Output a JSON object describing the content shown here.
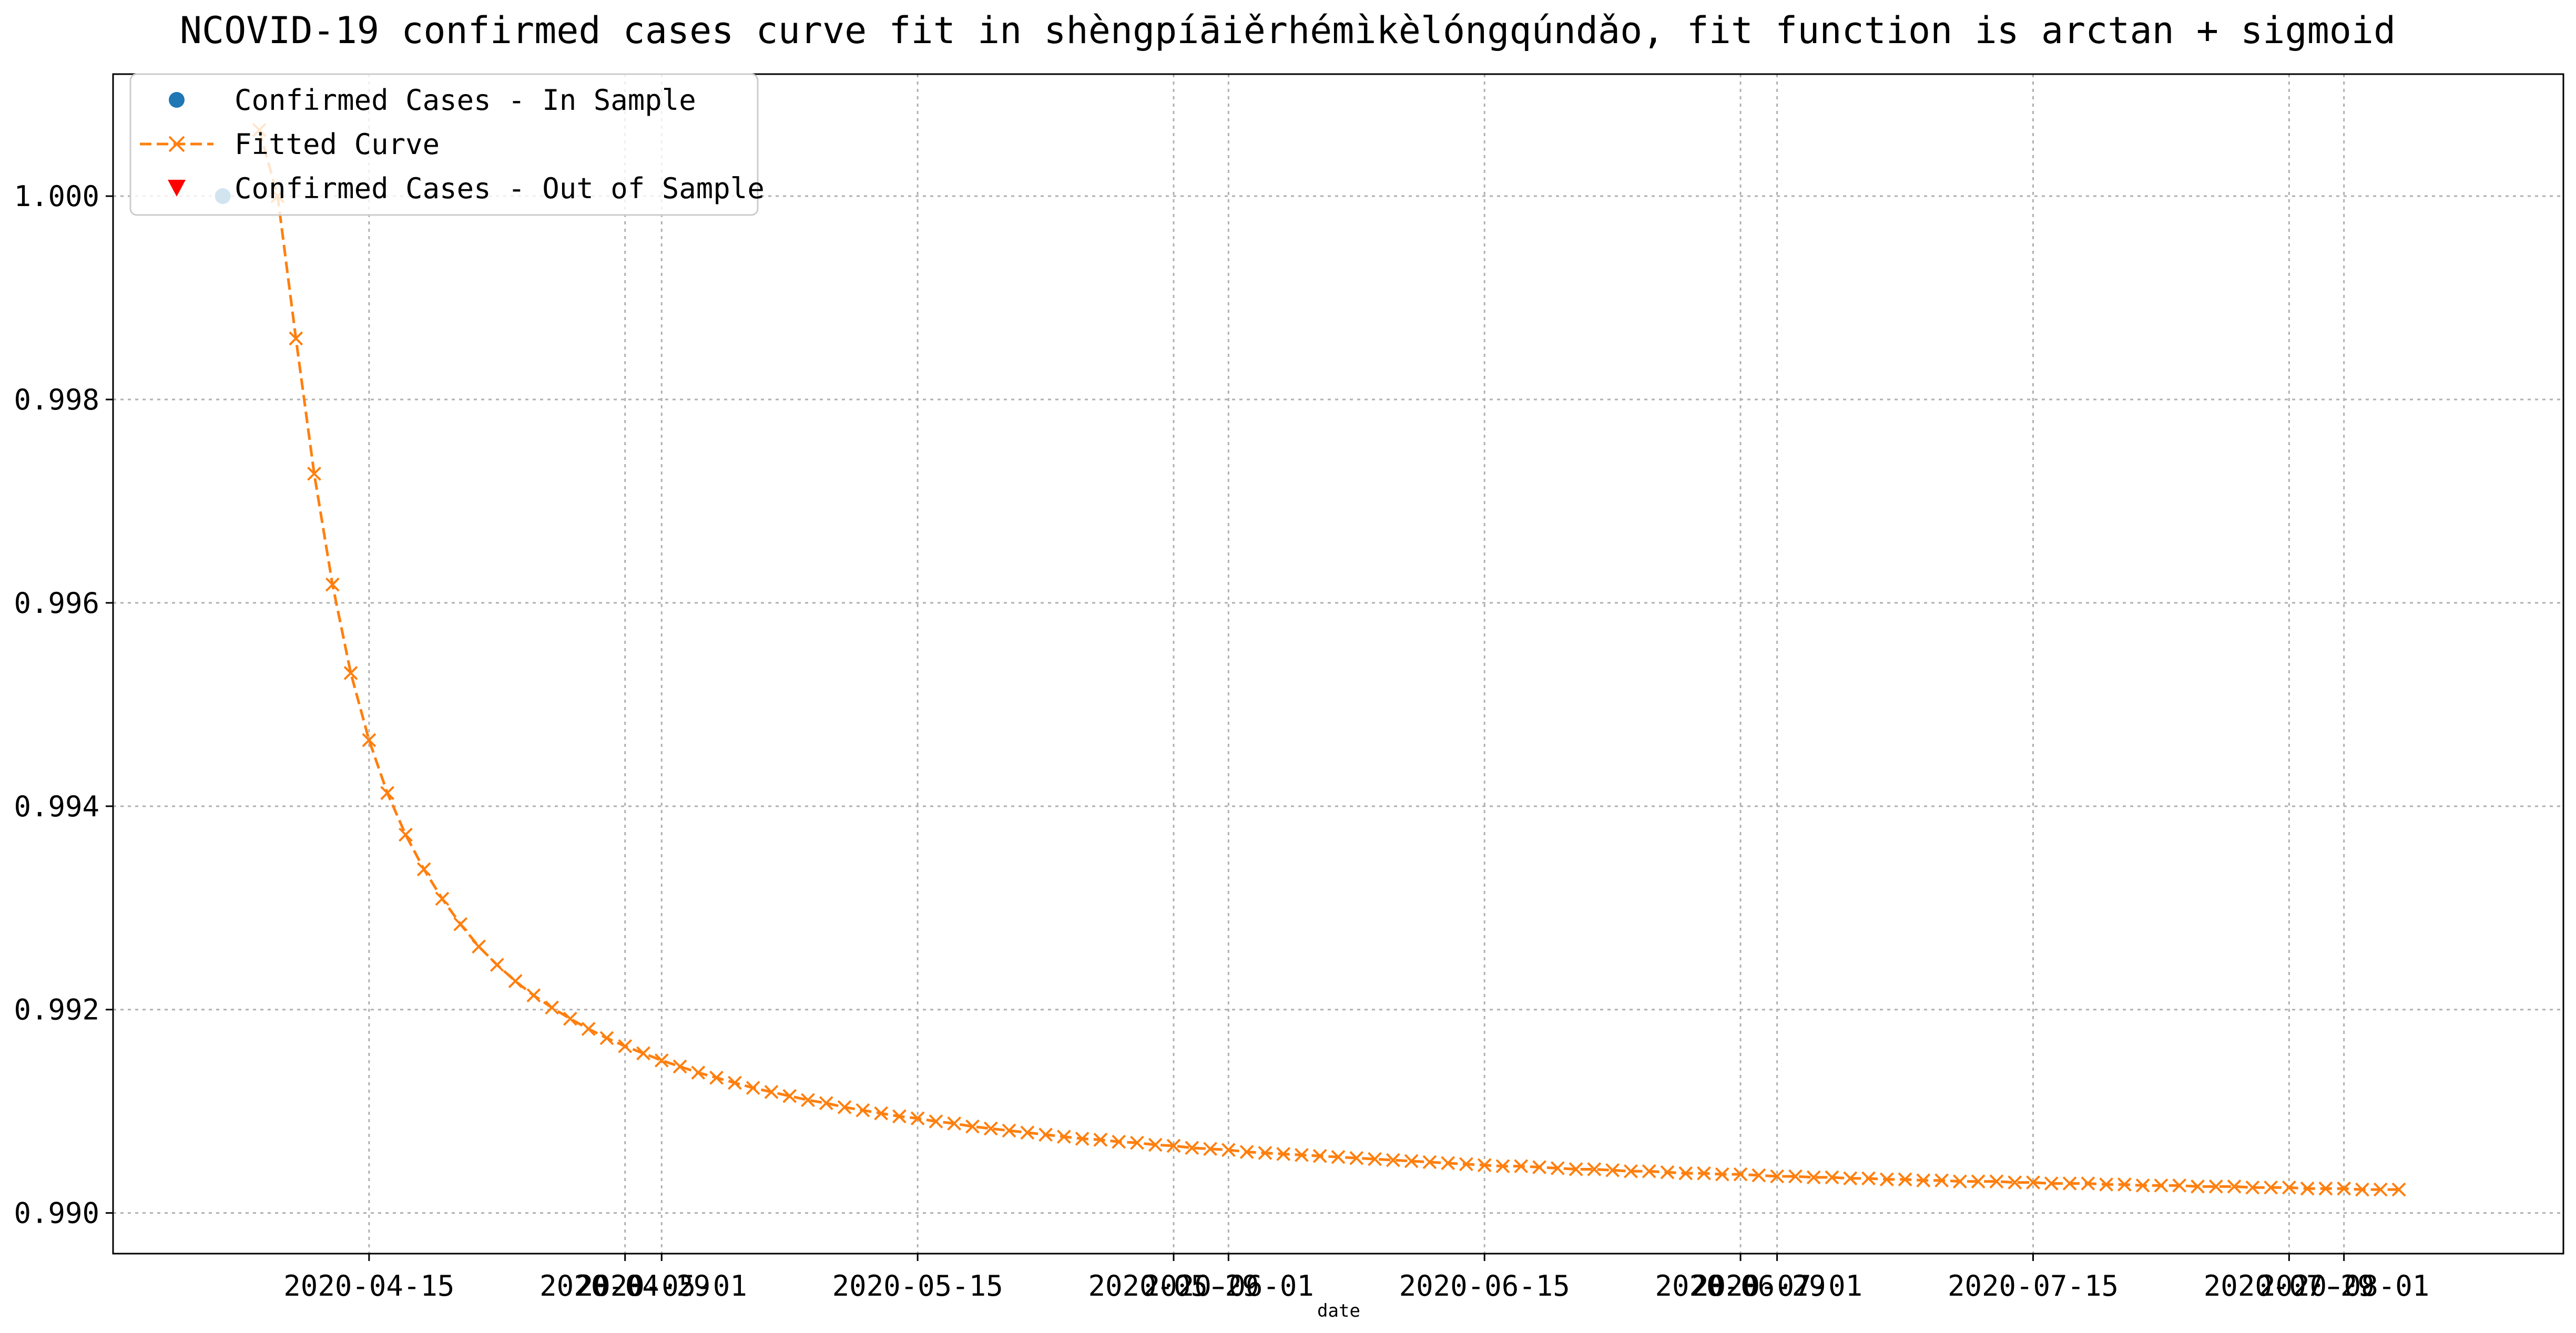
{
  "chart_data": {
    "type": "line",
    "title": "NCOVID-19 confirmed cases curve fit in shèngpíāiěrhémìkèlóngqúndǎo, fit function is arctan + sigmoid",
    "xlabel": "date",
    "ylabel": "",
    "x_type": "date",
    "xlim": [
      "2020-04-01",
      "2020-08-13"
    ],
    "ylim": [
      0.9896,
      1.0012
    ],
    "grid": true,
    "legend_position": "top-left",
    "x_ticks": [
      "2020-04-15",
      "2020-04-29",
      "2020-05-01",
      "2020-05-15",
      "2020-05-29",
      "2020-06-01",
      "2020-06-15",
      "2020-06-29",
      "2020-07-01",
      "2020-07-15",
      "2020-07-29",
      "2020-08-01"
    ],
    "y_ticks": [
      "0.990",
      "0.992",
      "0.994",
      "0.996",
      "0.998",
      "1.000"
    ],
    "colors": {
      "in_sample": "#1f77b4",
      "fitted": "#ff7f0e",
      "out_of_sample": "#ff0000"
    },
    "series": [
      {
        "name": "Confirmed Cases - In Sample",
        "marker": "circle",
        "points": [
          {
            "x": "2020-04-07",
            "y": 1.0
          }
        ]
      },
      {
        "name": "Fitted Curve",
        "marker": "x",
        "line": "dashed",
        "x_start": "2020-04-09",
        "x_step_days": 1,
        "values": [
          1.00065,
          1.0,
          0.9986,
          0.99727,
          0.99618,
          0.99531,
          0.99465,
          0.99413,
          0.99372,
          0.99338,
          0.99309,
          0.99284,
          0.99262,
          0.99244,
          0.99228,
          0.99214,
          0.99202,
          0.99191,
          0.99181,
          0.99172,
          0.99164,
          0.99157,
          0.9915,
          0.99144,
          0.99138,
          0.99133,
          0.99128,
          0.99123,
          0.99119,
          0.99115,
          0.99111,
          0.99108,
          0.99104,
          0.99101,
          0.99098,
          0.99095,
          0.99093,
          0.9909,
          0.99088,
          0.99085,
          0.99083,
          0.99081,
          0.99079,
          0.99077,
          0.99075,
          0.99073,
          0.99072,
          0.9907,
          0.99069,
          0.99067,
          0.99066,
          0.99064,
          0.99063,
          0.99062,
          0.9906,
          0.99059,
          0.99058,
          0.99057,
          0.99056,
          0.99055,
          0.99054,
          0.99053,
          0.99052,
          0.99051,
          0.9905,
          0.99049,
          0.99048,
          0.99047,
          0.99046,
          0.99046,
          0.99045,
          0.99044,
          0.99043,
          0.99043,
          0.99042,
          0.99041,
          0.99041,
          0.9904,
          0.99039,
          0.99039,
          0.99038,
          0.99038,
          0.99037,
          0.99036,
          0.99036,
          0.99035,
          0.99035,
          0.99034,
          0.99034,
          0.99033,
          0.99033,
          0.99032,
          0.99032,
          0.99031,
          0.99031,
          0.99031,
          0.9903,
          0.9903,
          0.99029,
          0.99029,
          0.99029,
          0.99028,
          0.99028,
          0.99027,
          0.99027,
          0.99027,
          0.99026,
          0.99026,
          0.99026,
          0.99025,
          0.99025,
          0.99025,
          0.99024,
          0.99024,
          0.99024,
          0.99023,
          0.99023,
          0.99023
        ]
      },
      {
        "name": "Confirmed Cases - Out of Sample",
        "marker": "triangle-down",
        "points": []
      }
    ]
  }
}
